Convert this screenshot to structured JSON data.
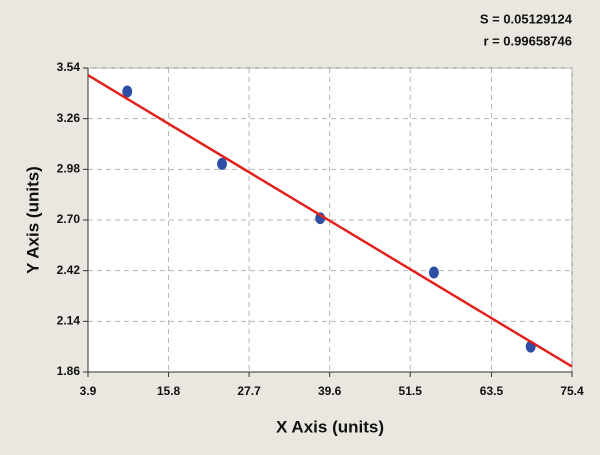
{
  "chart_data": {
    "type": "scatter",
    "annotations": [
      "S = 0.05129124",
      "r = 0.99658746"
    ],
    "x_label": "X Axis (units)",
    "y_label": "Y Axis (units)",
    "xlim": [
      3.9,
      75.4
    ],
    "xticks": [
      3.9,
      15.8,
      27.7,
      39.6,
      51.5,
      63.5,
      75.4
    ],
    "ylim": [
      1.86,
      3.54
    ],
    "yticks": [
      1.86,
      2.14,
      2.42,
      {
        "value": 2.7,
        "label": "2.70"
      },
      2.98,
      3.26,
      3.54
    ],
    "grid": true,
    "series": [
      {
        "mode": "points",
        "color": "#2e4ea6",
        "x": [
          9.7,
          23.7,
          38.2,
          55.0,
          69.3
        ],
        "values": [
          3.41,
          3.01,
          2.71,
          2.41,
          2.0
        ]
      },
      {
        "mode": "line",
        "color": "#e3211c",
        "x": [
          3.9,
          75.4
        ],
        "values": [
          3.5,
          1.89
        ]
      }
    ]
  }
}
